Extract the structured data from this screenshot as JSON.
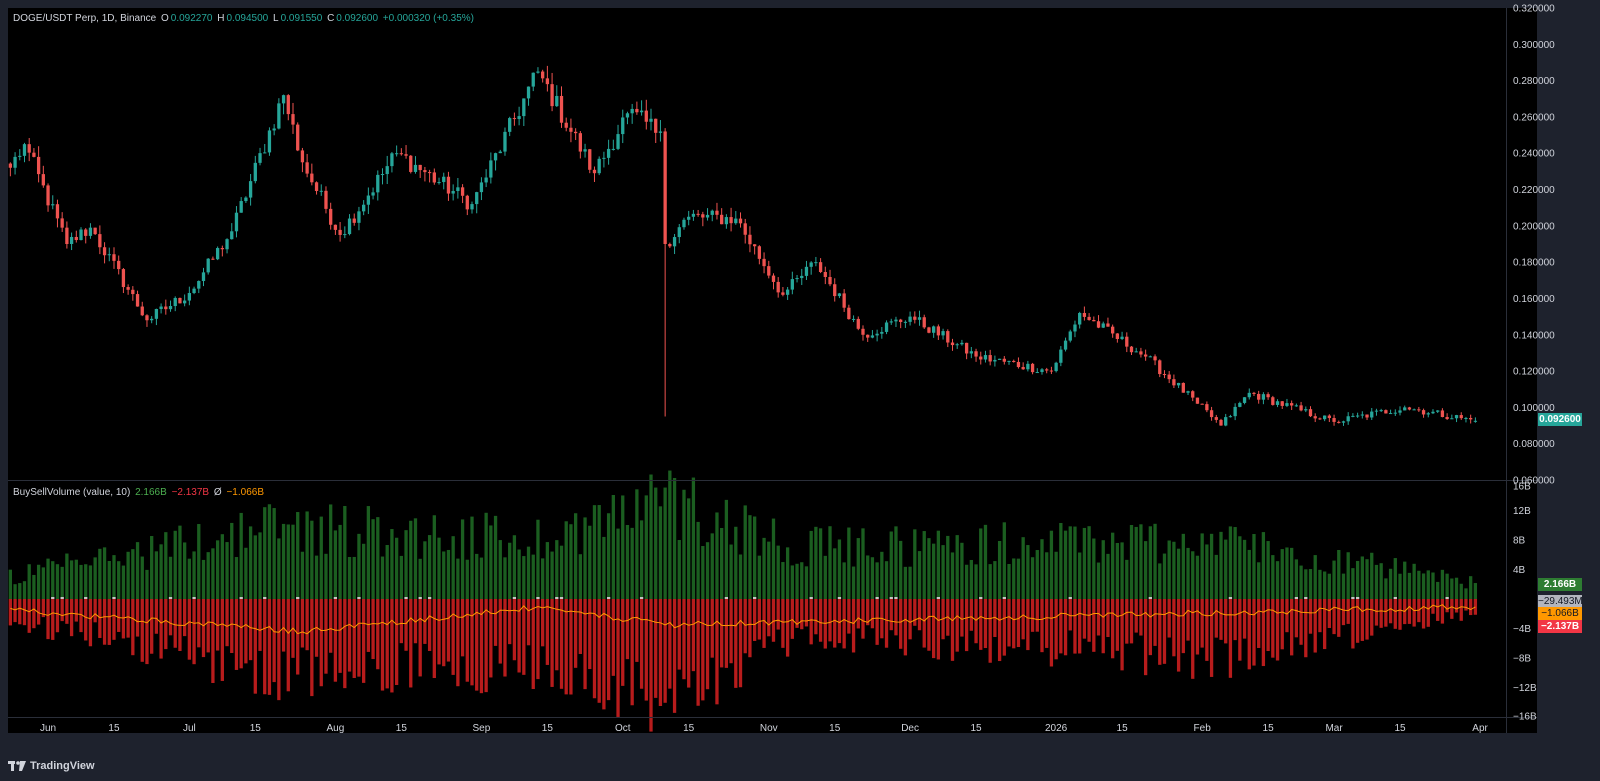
{
  "legend": {
    "symbol": "DOGE/USDT Perp, 1D, Binance",
    "o_label": "O",
    "o_value": "0.092270",
    "h_label": "H",
    "h_value": "0.094500",
    "l_label": "L",
    "l_value": "0.091550",
    "c_label": "C",
    "c_value": "0.092600",
    "change": "+0.000320 (+0.35%)"
  },
  "indicator": {
    "title": "BuySellVolume (value, 10)",
    "buy": "2.166B",
    "sell": "−2.137B",
    "avg_symbol": "Ø",
    "avg": "−1.066B"
  },
  "badges": {
    "price": "0.092600",
    "buy": "2.166B",
    "delta": "−29.493M",
    "avg": "−1.066B",
    "sell": "−2.137B"
  },
  "brand": "TradingView",
  "colors": {
    "up": "#26a69a",
    "down": "#ef5350",
    "buy_bar": "#1b5e20",
    "sell_bar": "#b71c1c",
    "avg_line": "#ff9800",
    "price_badge": "#26a69a"
  },
  "chart_data": [
    {
      "type": "candlestick",
      "title": "DOGE/USDT Perp, 1D, Binance",
      "y_axis": {
        "ticks": [
          "0.320000",
          "0.300000",
          "0.280000",
          "0.260000",
          "0.240000",
          "0.220000",
          "0.200000",
          "0.180000",
          "0.160000",
          "0.140000",
          "0.120000",
          "0.100000",
          "0.080000",
          "0.060000"
        ],
        "ylim": [
          0.06,
          0.32
        ]
      },
      "x_axis": {
        "ticks": [
          "Jun",
          "15",
          "Jul",
          "15",
          "Aug",
          "15",
          "Sep",
          "15",
          "Oct",
          "15",
          "Nov",
          "15",
          "Dec",
          "15",
          "2026",
          "15",
          "Feb",
          "15",
          "Mar",
          "15",
          "Apr"
        ],
        "range": [
          "2025-05-24",
          "2026-04-07"
        ]
      },
      "key_points": [
        {
          "date": "2025-05-24",
          "close": 0.232
        },
        {
          "date": "2025-05-27",
          "close": 0.245
        },
        {
          "date": "2025-06-05",
          "close": 0.19
        },
        {
          "date": "2025-06-10",
          "close": 0.199
        },
        {
          "date": "2025-06-22",
          "close": 0.148
        },
        {
          "date": "2025-07-01",
          "close": 0.163
        },
        {
          "date": "2025-07-10",
          "close": 0.197
        },
        {
          "date": "2025-07-21",
          "close": 0.272
        },
        {
          "date": "2025-07-25",
          "close": 0.235
        },
        {
          "date": "2025-08-02",
          "close": 0.195
        },
        {
          "date": "2025-08-14",
          "close": 0.24
        },
        {
          "date": "2025-08-30",
          "close": 0.212
        },
        {
          "date": "2025-09-13",
          "close": 0.285
        },
        {
          "date": "2025-09-25",
          "close": 0.229
        },
        {
          "date": "2025-10-02",
          "close": 0.262
        },
        {
          "date": "2025-10-09",
          "close": 0.252
        },
        {
          "date": "2025-10-10",
          "close": 0.19,
          "low": 0.095
        },
        {
          "date": "2025-10-15",
          "close": 0.205
        },
        {
          "date": "2025-10-25",
          "close": 0.204
        },
        {
          "date": "2025-11-04",
          "close": 0.162
        },
        {
          "date": "2025-11-11",
          "close": 0.18
        },
        {
          "date": "2025-11-21",
          "close": 0.14
        },
        {
          "date": "2025-12-01",
          "close": 0.15
        },
        {
          "date": "2025-12-15",
          "close": 0.128
        },
        {
          "date": "2025-12-31",
          "close": 0.12
        },
        {
          "date": "2026-01-06",
          "close": 0.152
        },
        {
          "date": "2026-01-20",
          "close": 0.128
        },
        {
          "date": "2026-01-31",
          "close": 0.102
        },
        {
          "date": "2026-02-05",
          "close": 0.09
        },
        {
          "date": "2026-02-11",
          "close": 0.108
        },
        {
          "date": "2026-03-01",
          "close": 0.092
        },
        {
          "date": "2026-03-16",
          "close": 0.1
        },
        {
          "date": "2026-03-31",
          "close": 0.0926
        }
      ],
      "last": {
        "open": 0.09227,
        "high": 0.0945,
        "low": 0.09155,
        "close": 0.0926
      }
    },
    {
      "type": "bar",
      "title": "BuySellVolume (value, 10)",
      "y_axis": {
        "ticks": [
          "16B",
          "12B",
          "8B",
          "4B",
          "0",
          "−4B",
          "−8B",
          "−12B",
          "−16B"
        ],
        "ylim": [
          -16,
          16
        ],
        "unit": "B"
      },
      "series": [
        {
          "name": "buy",
          "key_points": [
            [
              "2025-05-24",
              3
            ],
            [
              "2025-07-20",
              10
            ],
            [
              "2025-09-12",
              8
            ],
            [
              "2025-10-11",
              13.5
            ],
            [
              "2025-11-08",
              7
            ],
            [
              "2026-02-04",
              8
            ],
            [
              "2026-03-31",
              2.166
            ]
          ]
        },
        {
          "name": "sell",
          "key_points": [
            [
              "2025-05-24",
              -3
            ],
            [
              "2025-07-20",
              -10
            ],
            [
              "2025-09-12",
              -9
            ],
            [
              "2025-10-11",
              -13.5
            ],
            [
              "2025-11-08",
              -5
            ],
            [
              "2026-02-04",
              -8
            ],
            [
              "2026-03-31",
              -2.137
            ]
          ]
        },
        {
          "name": "avg",
          "key_points": [
            [
              "2025-05-24",
              -1.5
            ],
            [
              "2025-07-25",
              -4.4
            ],
            [
              "2025-09-12",
              -1.2
            ],
            [
              "2025-10-12",
              -3.5
            ],
            [
              "2026-03-31",
              -1.066
            ]
          ]
        }
      ]
    }
  ]
}
